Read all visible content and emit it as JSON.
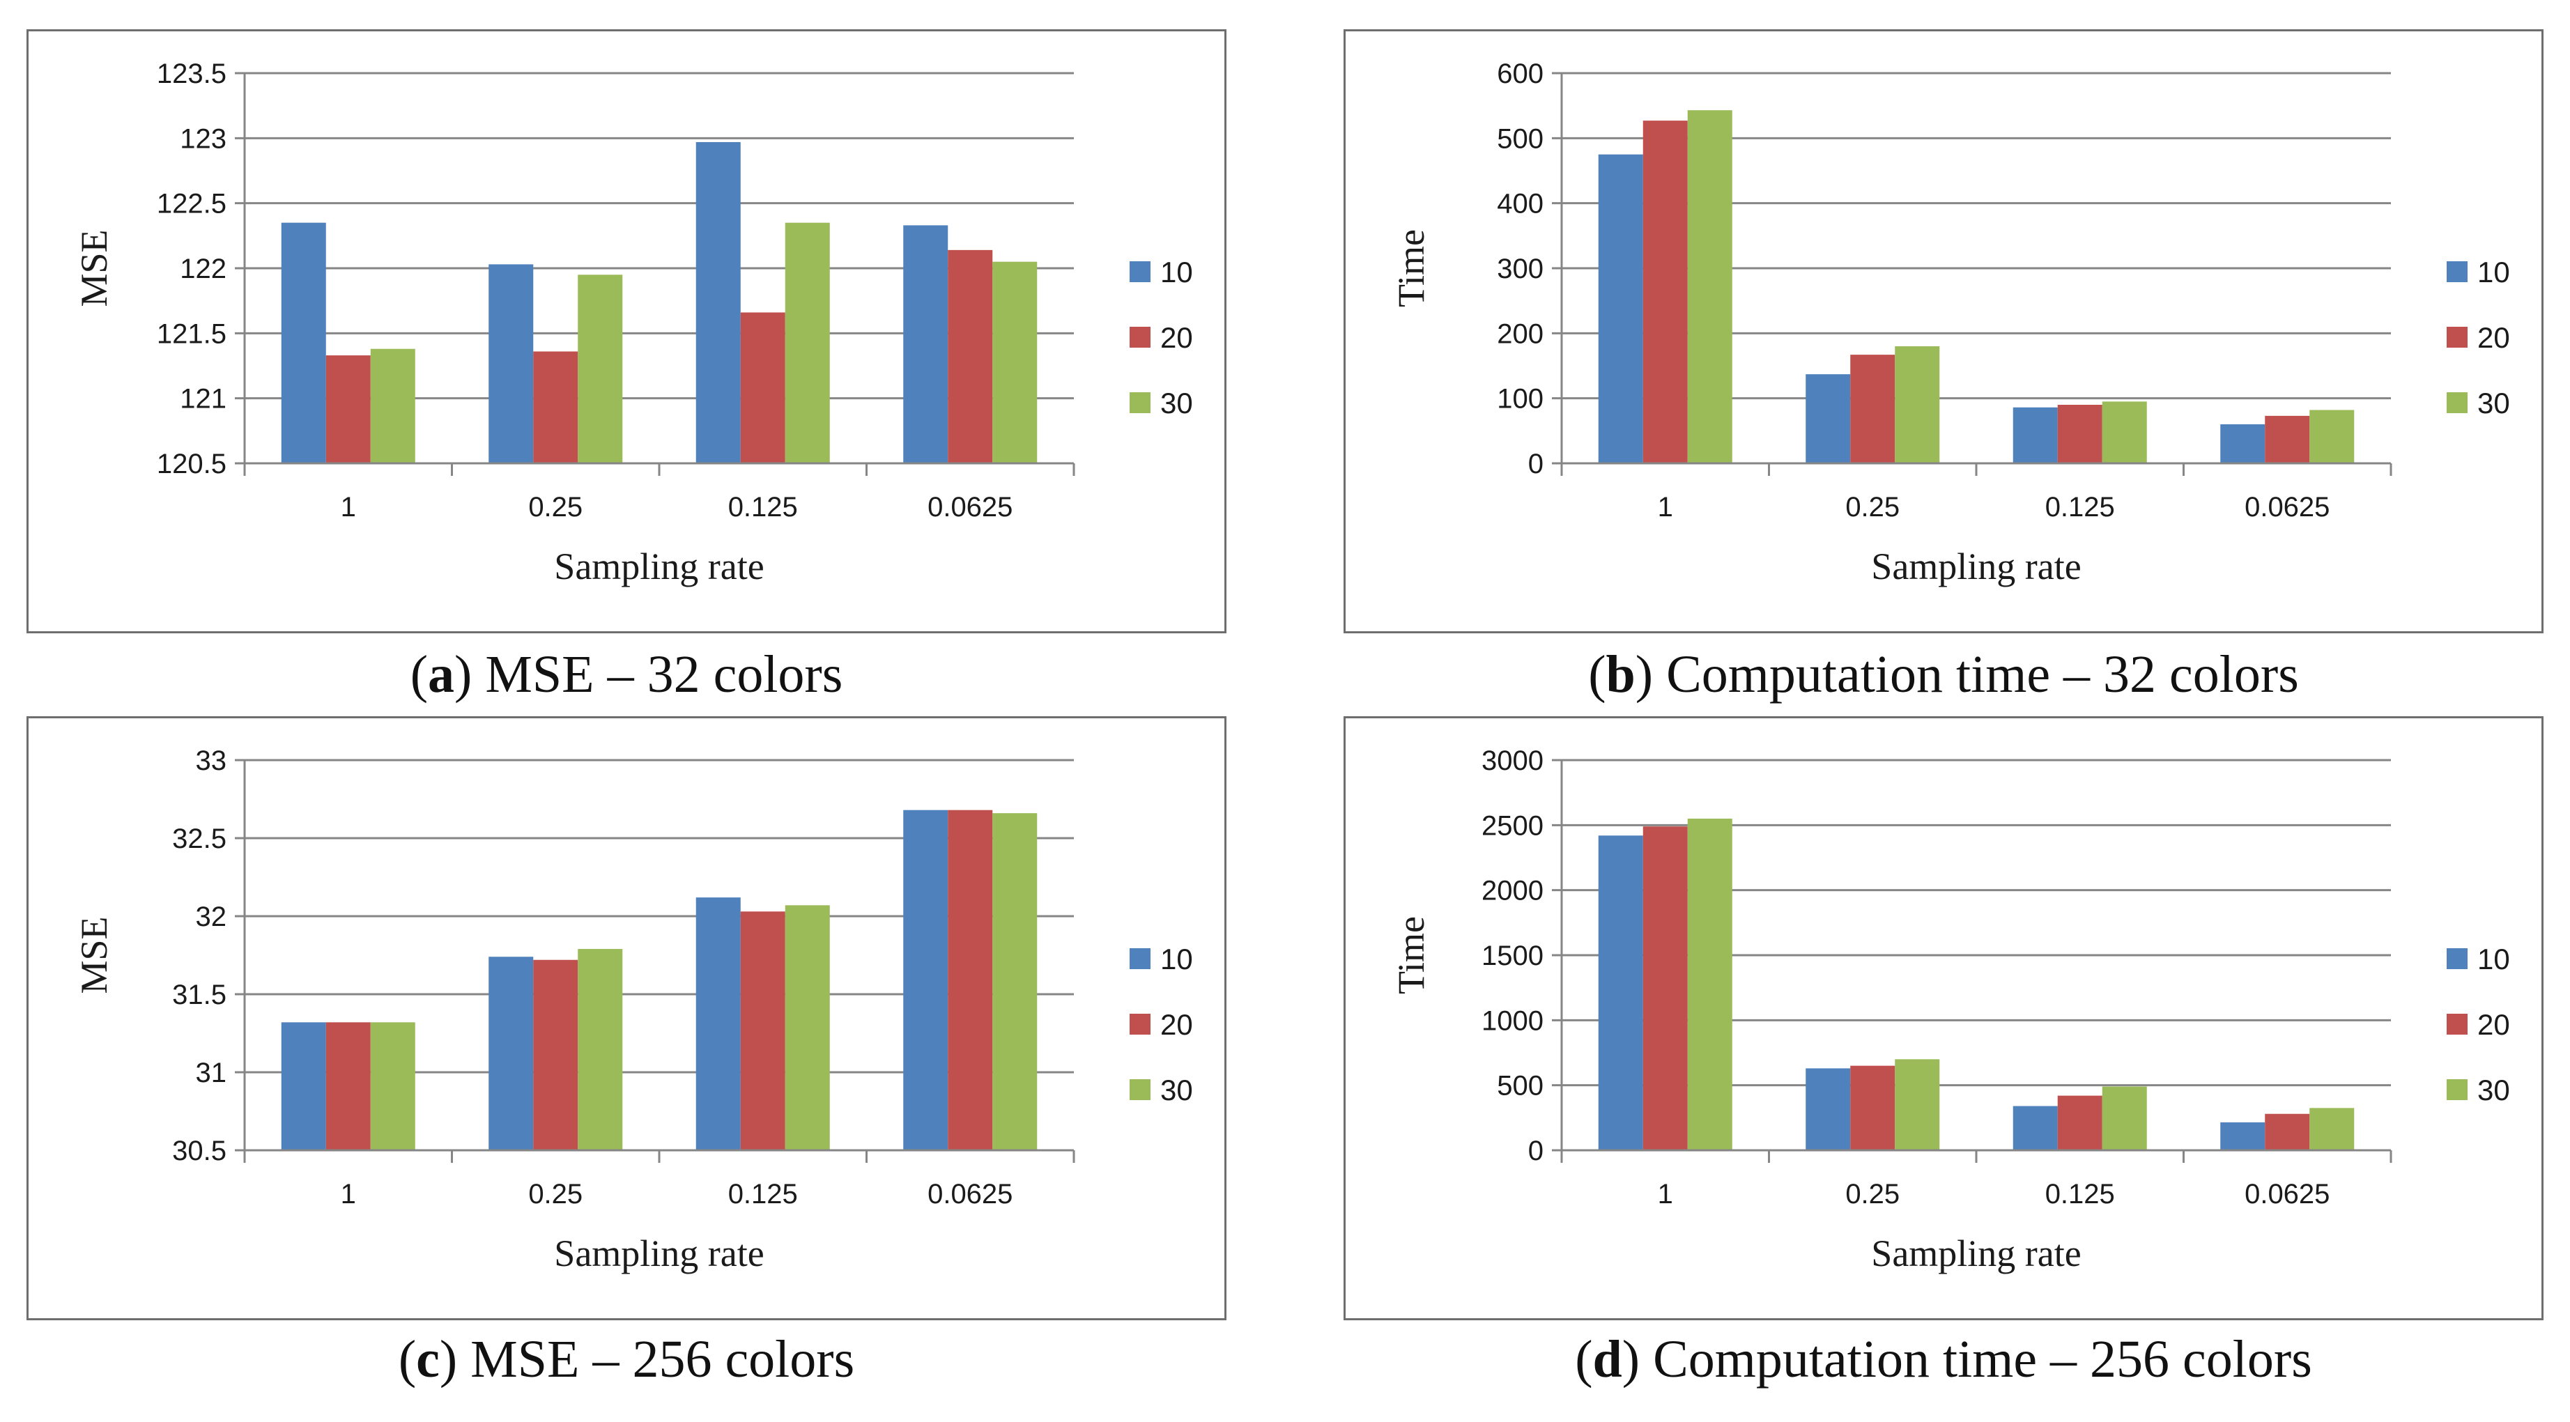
{
  "colors": {
    "s10": "#4f81bd",
    "s20": "#c0504d",
    "s30": "#9bbb59",
    "grid": "#868686",
    "axis": "#868686"
  },
  "chart_data": [
    {
      "id": "a",
      "type": "bar",
      "title": "",
      "caption_label": "a",
      "caption_text": "MSE – 32 colors",
      "xlabel": "Sampling  rate",
      "ylabel": "MSE",
      "categories": [
        "1",
        "0.25",
        "0.125",
        "0.0625"
      ],
      "ylim": [
        120.5,
        123.5
      ],
      "yticks": [
        "120.5",
        "121",
        "121.5",
        "122",
        "122.5",
        "123",
        "123.5"
      ],
      "ytick_values": [
        120.5,
        121,
        121.5,
        122,
        122.5,
        123,
        123.5
      ],
      "series": [
        {
          "name": "10",
          "values": [
            122.35,
            122.03,
            122.97,
            122.33
          ]
        },
        {
          "name": "20",
          "values": [
            121.33,
            121.36,
            121.66,
            122.14
          ]
        },
        {
          "name": "30",
          "values": [
            121.38,
            121.95,
            122.35,
            122.05
          ]
        }
      ],
      "legend": "right"
    },
    {
      "id": "b",
      "type": "bar",
      "title": "",
      "caption_label": "b",
      "caption_text": "Computation time – 32 colors",
      "xlabel": "Sampling  rate",
      "ylabel": "Time",
      "categories": [
        "1",
        "0.25",
        "0.125",
        "0.0625"
      ],
      "ylim": [
        0,
        600
      ],
      "yticks": [
        "0",
        "100",
        "200",
        "300",
        "400",
        "500",
        "600"
      ],
      "ytick_values": [
        0,
        100,
        200,
        300,
        400,
        500,
        600
      ],
      "series": [
        {
          "name": "10",
          "values": [
            475,
            137,
            86,
            60
          ]
        },
        {
          "name": "20",
          "values": [
            527,
            167,
            90,
            73
          ]
        },
        {
          "name": "30",
          "values": [
            543,
            180,
            95,
            82
          ]
        }
      ],
      "legend": "right"
    },
    {
      "id": "c",
      "type": "bar",
      "title": "",
      "caption_label": "c",
      "caption_text": "MSE – 256 colors",
      "xlabel": "Sampling  rate",
      "ylabel": "MSE",
      "categories": [
        "1",
        "0.25",
        "0.125",
        "0.0625"
      ],
      "ylim": [
        30.5,
        33
      ],
      "yticks": [
        "30.5",
        "31",
        "31.5",
        "32",
        "32.5",
        "33"
      ],
      "ytick_values": [
        30.5,
        31,
        31.5,
        32,
        32.5,
        33
      ],
      "series": [
        {
          "name": "10",
          "values": [
            31.32,
            31.74,
            32.12,
            32.68
          ]
        },
        {
          "name": "20",
          "values": [
            31.32,
            31.72,
            32.03,
            32.68
          ]
        },
        {
          "name": "30",
          "values": [
            31.32,
            31.79,
            32.07,
            32.66
          ]
        }
      ],
      "legend": "right"
    },
    {
      "id": "d",
      "type": "bar",
      "title": "",
      "caption_label": "d",
      "caption_text": "Computation time – 256 colors",
      "xlabel": "Sampling  rate",
      "ylabel": "Time",
      "categories": [
        "1",
        "0.25",
        "0.125",
        "0.0625"
      ],
      "ylim": [
        0,
        3000
      ],
      "yticks": [
        "0",
        "500",
        "1000",
        "1500",
        "2000",
        "2500",
        "3000"
      ],
      "ytick_values": [
        0,
        500,
        1000,
        1500,
        2000,
        2500,
        3000
      ],
      "series": [
        {
          "name": "10",
          "values": [
            2420,
            630,
            340,
            215
          ]
        },
        {
          "name": "20",
          "values": [
            2490,
            650,
            420,
            280
          ]
        },
        {
          "name": "30",
          "values": [
            2550,
            700,
            490,
            325
          ]
        }
      ],
      "legend": "right"
    }
  ]
}
